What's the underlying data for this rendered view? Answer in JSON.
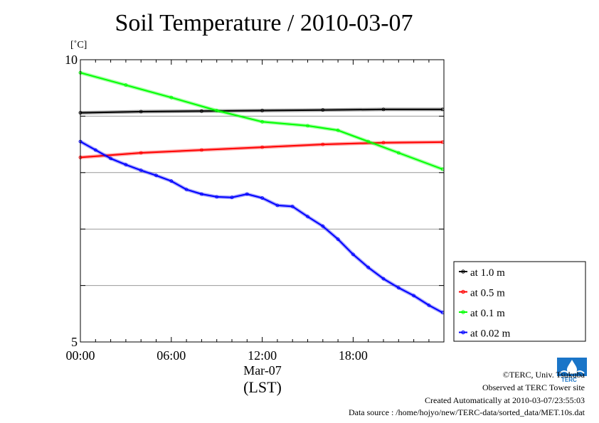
{
  "chart_data": {
    "type": "line",
    "title": "Soil Temperature / 2010-03-07",
    "ylabel": "[˚C]",
    "xlabel": "(LST)",
    "x_sublabel": "Mar-07",
    "x_ticks": [
      {
        "hour": 0,
        "label": "00:00"
      },
      {
        "hour": 6,
        "label": "06:00"
      },
      {
        "hour": 12,
        "label": "12:00"
      },
      {
        "hour": 18,
        "label": "18:00"
      }
    ],
    "y_ticks": [
      {
        "value": 5,
        "label": "5"
      },
      {
        "value": 10,
        "label": "10"
      }
    ],
    "xlim": [
      0,
      23.99
    ],
    "ylim": [
      5,
      10
    ],
    "grid": true,
    "legend_position": "right",
    "series": [
      {
        "name": "at 1.0 m",
        "color": "#000000",
        "x": [
          0,
          4,
          8,
          12,
          16,
          20,
          23.9
        ],
        "y": [
          9.06,
          9.08,
          9.09,
          9.1,
          9.11,
          9.12,
          9.12
        ]
      },
      {
        "name": "at 0.5 m",
        "color": "#ff0000",
        "x": [
          0,
          4,
          8,
          12,
          16,
          20,
          23.9
        ],
        "y": [
          8.27,
          8.35,
          8.4,
          8.45,
          8.5,
          8.53,
          8.54
        ]
      },
      {
        "name": "at 0.1 m",
        "color": "#00ff00",
        "x": [
          0,
          3,
          6,
          9,
          12,
          15,
          17,
          19,
          21,
          23.9
        ],
        "y": [
          9.77,
          9.55,
          9.33,
          9.1,
          8.9,
          8.83,
          8.75,
          8.55,
          8.35,
          8.06
        ]
      },
      {
        "name": "at 0.02 m",
        "color": "#0000ff",
        "x": [
          0,
          1,
          2,
          3,
          4,
          5,
          6,
          7,
          8,
          9,
          10,
          11,
          12,
          13,
          14,
          15,
          16,
          17,
          18,
          19,
          20,
          21,
          22,
          23,
          23.9
        ],
        "y": [
          8.55,
          8.4,
          8.25,
          8.14,
          8.04,
          7.95,
          7.85,
          7.7,
          7.62,
          7.57,
          7.56,
          7.62,
          7.55,
          7.42,
          7.4,
          7.22,
          7.05,
          6.82,
          6.55,
          6.32,
          6.12,
          5.96,
          5.82,
          5.65,
          5.52
        ]
      }
    ]
  },
  "footer": {
    "credit": "©TERC, Univ. Tsukuba",
    "site": "Observed at TERC Tower site",
    "created": "Created Automatically at 2010-03-07/23:55:03",
    "source": "Data source : /home/hojyo/new/TERC-data/sorted_data/MET.10s.dat",
    "logo_text": "TERC"
  }
}
